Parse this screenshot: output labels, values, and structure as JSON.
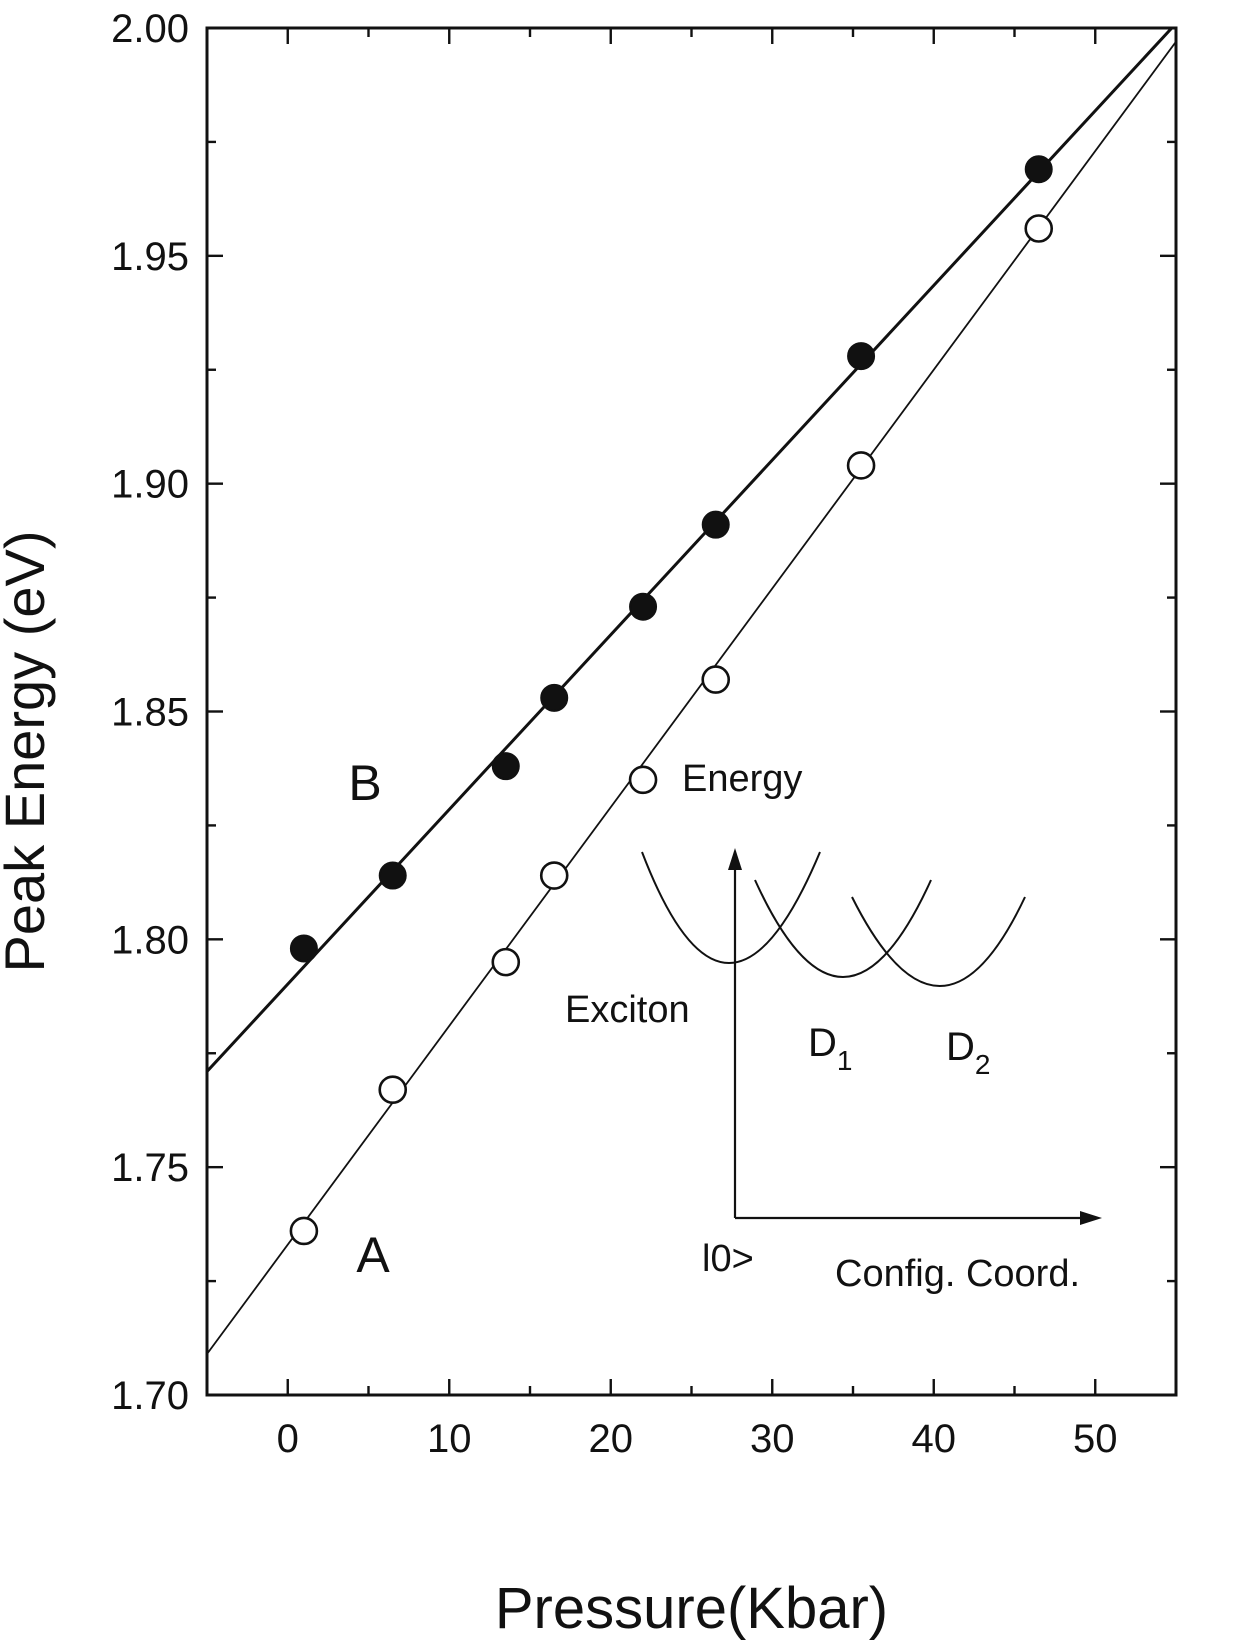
{
  "chart_data": {
    "type": "scatter",
    "xlabel": "Pressure(Kbar)",
    "ylabel": "Peak Energy (eV)",
    "xlim": [
      -5,
      55
    ],
    "ylim": [
      1.7,
      2.0
    ],
    "x_ticks": [
      0,
      10,
      20,
      30,
      40,
      50
    ],
    "y_ticks": [
      1.7,
      1.75,
      1.8,
      1.85,
      1.9,
      1.95,
      2.0
    ],
    "y_tick_labels": [
      "1.70",
      "1.75",
      "1.80",
      "1.85",
      "1.90",
      "1.95",
      "2.00"
    ],
    "x_tick_labels": [
      "0",
      "10",
      "20",
      "30",
      "40",
      "50"
    ],
    "grid": false,
    "series": [
      {
        "label": "B",
        "marker": "filled-circle",
        "points": [
          {
            "x": 1.0,
            "y": 1.798
          },
          {
            "x": 6.5,
            "y": 1.814
          },
          {
            "x": 13.5,
            "y": 1.838
          },
          {
            "x": 16.5,
            "y": 1.853
          },
          {
            "x": 22.0,
            "y": 1.873
          },
          {
            "x": 26.5,
            "y": 1.891
          },
          {
            "x": 35.5,
            "y": 1.928
          },
          {
            "x": 46.5,
            "y": 1.969
          }
        ],
        "fit": {
          "x": [
            -5,
            55
          ],
          "y": [
            1.771,
            2.001
          ]
        }
      },
      {
        "label": "A",
        "marker": "open-circle",
        "points": [
          {
            "x": 1.0,
            "y": 1.736
          },
          {
            "x": 6.5,
            "y": 1.767
          },
          {
            "x": 13.5,
            "y": 1.795
          },
          {
            "x": 16.5,
            "y": 1.814
          },
          {
            "x": 22.0,
            "y": 1.835
          },
          {
            "x": 26.5,
            "y": 1.857
          },
          {
            "x": 35.5,
            "y": 1.904
          },
          {
            "x": 46.5,
            "y": 1.956
          }
        ],
        "fit": {
          "x": [
            -5,
            55
          ],
          "y": [
            1.709,
            1.997
          ]
        }
      }
    ],
    "inset": {
      "labels": {
        "energy": "Energy",
        "exciton": "Exciton",
        "d1_main": "D",
        "d1_sub": "1",
        "d2_main": "D",
        "d2_sub": "2",
        "ground": "l0>",
        "config": "Config. Coord."
      }
    }
  }
}
